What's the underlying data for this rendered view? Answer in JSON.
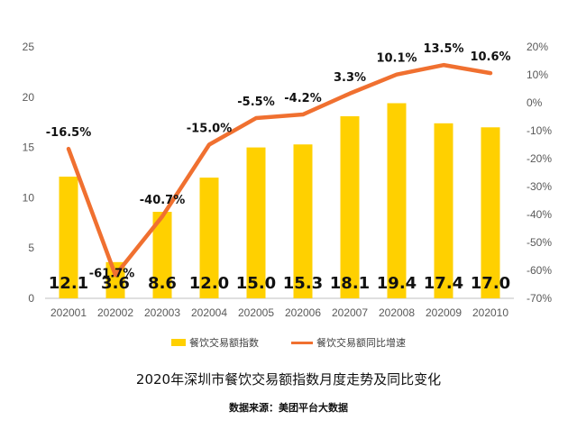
{
  "chart_data": {
    "type": "bar",
    "title": "2020年深圳市餐饮交易额指数月度走势及同比变化",
    "source": "数据来源：美团平台大数据",
    "categories": [
      "202001",
      "202002",
      "202003",
      "202004",
      "202005",
      "202006",
      "202007",
      "202008",
      "202009",
      "202010"
    ],
    "series": [
      {
        "name": "餐饮交易额指数",
        "type": "bar",
        "axis": "left",
        "values": [
          12.1,
          3.6,
          8.6,
          12.0,
          15.0,
          15.3,
          18.1,
          19.4,
          17.4,
          17.0
        ],
        "labels": [
          "12.1",
          "3.6",
          "8.6",
          "12.0",
          "15.0",
          "15.3",
          "18.1",
          "19.4",
          "17.4",
          "17.0"
        ]
      },
      {
        "name": "餐饮交易额同比增速",
        "type": "line",
        "axis": "right",
        "values": [
          -16.5,
          -61.7,
          -40.7,
          -15.0,
          -5.5,
          -4.2,
          3.3,
          10.1,
          13.5,
          10.6
        ],
        "labels": [
          "-16.5%",
          "-61.7%",
          "-40.7%",
          "-15.0%",
          "-5.5%",
          "-4.2%",
          "3.3%",
          "10.1%",
          "13.5%",
          "10.6%"
        ]
      }
    ],
    "y_left": {
      "min": 0,
      "max": 25,
      "ticks": [
        "0",
        "5",
        "10",
        "15",
        "20",
        "25"
      ]
    },
    "y_right": {
      "min": -70,
      "max": 20,
      "ticks": [
        "-70%",
        "-60%",
        "-50%",
        "-40%",
        "-30%",
        "-20%",
        "-10%",
        "0%",
        "10%",
        "20%"
      ]
    },
    "colors": {
      "bar": "#FFD000",
      "line": "#F07030"
    },
    "legend_position": "bottom",
    "grid": false
  }
}
